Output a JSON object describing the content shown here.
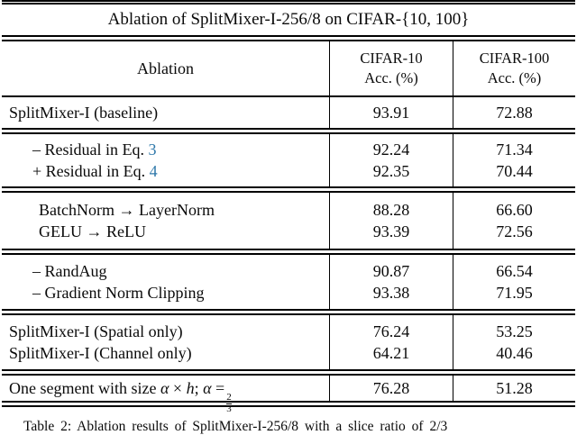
{
  "title": "Ablation of SplitMixer-I-256/8 on CIFAR-{10, 100}",
  "header": {
    "ablation": "Ablation",
    "cifar10_line1": "CIFAR-10",
    "cifar10_line2": "Acc. (%)",
    "cifar100_line1": "CIFAR-100",
    "cifar100_line2": "Acc. (%)"
  },
  "sections": [
    {
      "rows": [
        {
          "label": "SplitMixer-I (baseline)",
          "c10": "93.91",
          "c100": "72.88"
        }
      ]
    },
    {
      "rows": [
        {
          "prefix": "– Residual in Eq.",
          "link": "3",
          "c10": "92.24",
          "c100": "71.34"
        },
        {
          "prefix": "+ Residual in Eq.",
          "link": "4",
          "c10": "92.35",
          "c100": "70.44"
        }
      ]
    },
    {
      "rows": [
        {
          "label": "BatchNorm → LayerNorm",
          "c10": "88.28",
          "c100": "66.60"
        },
        {
          "label": "GELU → ReLU",
          "c10": "93.39",
          "c100": "72.56"
        }
      ]
    },
    {
      "rows": [
        {
          "label": "– RandAug",
          "c10": "90.87",
          "c100": "66.54"
        },
        {
          "label": "– Gradient Norm Clipping",
          "c10": "93.38",
          "c100": "71.95"
        }
      ]
    },
    {
      "rows": [
        {
          "label": "SplitMixer-I (Spatial only)",
          "c10": "76.24",
          "c100": "53.25"
        },
        {
          "label": "SplitMixer-I (Channel only)",
          "c10": "64.21",
          "c100": "40.46"
        }
      ]
    },
    {
      "rows": [
        {
          "math": {
            "prefix": "One segment with size",
            "alpha": "α",
            "times": "×",
            "h": "h",
            "semicolon": ";",
            "equals": "=",
            "frac_num": "2",
            "frac_den": "3"
          },
          "c10": "76.28",
          "c100": "51.28"
        }
      ]
    }
  ],
  "caption": "Table 2: Ablation results of SplitMixer-I-256/8 with a slice ratio of 2/3",
  "colors": {
    "link_blue": "#2e78aa",
    "rule_black": "#000000"
  }
}
